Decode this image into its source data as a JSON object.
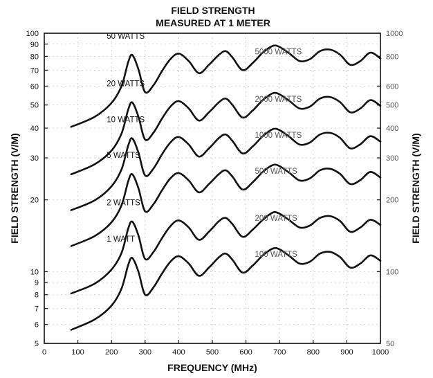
{
  "chart_data": {
    "type": "line",
    "title": [
      "FIELD STRENGTH",
      "MEASURED AT 1 METER"
    ],
    "xlabel": "FREQUENCY (MHz)",
    "ylabel_left": "FIELD STRENGTH (V/M)",
    "ylabel_right": "FIELD STRENGTH (V/M)",
    "xlim": [
      0,
      1000
    ],
    "ylim_left": [
      5,
      100
    ],
    "ylim_right": [
      50,
      1000
    ],
    "y_scale": "log",
    "grid": true,
    "x_ticks": [
      "0",
      "100",
      "200",
      "300",
      "400",
      "500",
      "600",
      "700",
      "800",
      "900",
      "1000"
    ],
    "y_ticks_left": [
      {
        "value": 5,
        "label": "5"
      },
      {
        "value": 6,
        "label": "6"
      },
      {
        "value": 7,
        "label": "7"
      },
      {
        "value": 8,
        "label": "8"
      },
      {
        "value": 9,
        "label": "9"
      },
      {
        "value": 10,
        "label": "10"
      },
      {
        "value": 20,
        "label": "20"
      },
      {
        "value": 30,
        "label": "30"
      },
      {
        "value": 40,
        "label": "40"
      },
      {
        "value": 50,
        "label": "50"
      },
      {
        "value": 60,
        "label": "60"
      },
      {
        "value": 70,
        "label": "70"
      },
      {
        "value": 80,
        "label": "80"
      },
      {
        "value": 90,
        "label": "90"
      },
      {
        "value": 100,
        "label": "100"
      }
    ],
    "y_ticks_right": [
      {
        "value": 50,
        "label": "50"
      },
      {
        "value": 100,
        "label": "100"
      },
      {
        "value": 200,
        "label": "200"
      },
      {
        "value": 300,
        "label": "300"
      },
      {
        "value": 400,
        "label": "400"
      },
      {
        "value": 500,
        "label": "500"
      },
      {
        "value": 600,
        "label": "600"
      },
      {
        "value": 800,
        "label": "800"
      },
      {
        "value": 1000,
        "label": "1000"
      }
    ],
    "series": [
      {
        "name": "1 WATT",
        "right_name": "100 WATTS",
        "label_at": 268,
        "right_label_at": 750,
        "x": [
          80,
          150,
          200,
          230,
          250,
          262,
          280,
          300,
          325,
          350,
          375,
          400,
          430,
          460,
          490,
          520,
          540,
          560,
          590,
          620,
          650,
          680,
          700,
          730,
          760,
          790,
          820,
          850,
          880,
          910,
          940,
          970,
          1000
        ],
        "y": [
          5.7,
          6.3,
          7.2,
          8.5,
          10.7,
          11.4,
          10.0,
          8.0,
          8.6,
          9.8,
          11.0,
          11.6,
          10.8,
          9.6,
          10.4,
          11.5,
          11.9,
          11.2,
          9.9,
          10.6,
          11.7,
          12.5,
          12.4,
          11.6,
          10.8,
          11.0,
          11.9,
          12.1,
          11.5,
          10.4,
          10.8,
          11.7,
          11.1
        ]
      },
      {
        "name": "2 WATTS",
        "right_name": "200 WATTS",
        "label_at": 268,
        "right_label_at": 750,
        "x": [
          80,
          150,
          200,
          230,
          250,
          262,
          280,
          300,
          325,
          350,
          375,
          400,
          430,
          460,
          490,
          520,
          540,
          560,
          590,
          620,
          650,
          680,
          700,
          730,
          760,
          790,
          820,
          850,
          880,
          910,
          940,
          970,
          1000
        ],
        "y": [
          8.1,
          8.9,
          10.2,
          12.0,
          15.2,
          16.2,
          14.2,
          11.3,
          12.1,
          13.8,
          15.5,
          16.4,
          15.3,
          13.6,
          14.7,
          16.3,
          16.8,
          15.8,
          14.0,
          15.0,
          16.5,
          17.7,
          17.5,
          16.4,
          15.3,
          15.6,
          16.8,
          17.1,
          16.3,
          14.7,
          15.3,
          16.5,
          15.7
        ]
      },
      {
        "name": "5 WATTS",
        "right_name": "500 WATTS",
        "label_at": 268,
        "right_label_at": 750,
        "x": [
          80,
          150,
          200,
          230,
          250,
          262,
          280,
          300,
          325,
          350,
          375,
          400,
          430,
          460,
          490,
          520,
          540,
          560,
          590,
          620,
          650,
          680,
          700,
          730,
          760,
          790,
          820,
          850,
          880,
          910,
          940,
          970,
          1000
        ],
        "y": [
          12.8,
          14.1,
          16.1,
          19.0,
          24.0,
          25.6,
          22.4,
          17.9,
          19.2,
          21.9,
          24.6,
          25.9,
          24.1,
          21.5,
          23.3,
          25.7,
          26.6,
          25.0,
          22.1,
          23.7,
          26.2,
          28.0,
          27.7,
          25.9,
          24.1,
          24.6,
          26.6,
          27.0,
          25.7,
          23.3,
          24.2,
          26.2,
          24.8
        ]
      },
      {
        "name": "10 WATTS",
        "right_name": "1000 WATTS",
        "label_at": 268,
        "right_label_at": 750,
        "x": [
          80,
          150,
          200,
          230,
          250,
          262,
          280,
          300,
          325,
          350,
          375,
          400,
          430,
          460,
          490,
          520,
          540,
          560,
          590,
          620,
          650,
          680,
          700,
          730,
          760,
          790,
          820,
          850,
          880,
          910,
          940,
          970,
          1000
        ],
        "y": [
          18.1,
          19.9,
          22.8,
          26.9,
          33.9,
          36.2,
          31.6,
          25.3,
          27.1,
          31.0,
          34.8,
          36.7,
          34.1,
          30.4,
          32.9,
          36.4,
          37.6,
          35.3,
          31.3,
          33.5,
          37.0,
          39.6,
          39.2,
          36.7,
          34.1,
          34.8,
          37.6,
          38.2,
          36.4,
          32.9,
          34.2,
          37.0,
          35.1
        ]
      },
      {
        "name": "20 WATTS",
        "right_name": "2000 WATTS",
        "label_at": 268,
        "right_label_at": 750,
        "x": [
          80,
          150,
          200,
          230,
          250,
          262,
          280,
          300,
          325,
          350,
          375,
          400,
          430,
          460,
          490,
          520,
          540,
          560,
          590,
          620,
          650,
          680,
          700,
          730,
          760,
          790,
          820,
          850,
          880,
          910,
          940,
          970,
          1000
        ],
        "y": [
          25.6,
          28.2,
          32.2,
          38.0,
          48.0,
          51.2,
          44.7,
          35.8,
          38.3,
          43.8,
          49.2,
          51.9,
          48.3,
          43.0,
          46.6,
          51.4,
          53.2,
          50.0,
          44.3,
          47.4,
          52.4,
          56.0,
          55.4,
          51.9,
          48.3,
          49.2,
          53.2,
          54.0,
          51.4,
          46.6,
          48.3,
          52.4,
          49.6
        ]
      },
      {
        "name": "50 WATTS",
        "right_name": "5000 WATTS",
        "label_at": 268,
        "right_label_at": 750,
        "x": [
          80,
          150,
          200,
          230,
          250,
          262,
          280,
          300,
          325,
          350,
          375,
          400,
          430,
          460,
          490,
          520,
          540,
          560,
          590,
          620,
          650,
          680,
          700,
          730,
          760,
          790,
          820,
          850,
          880,
          910,
          940,
          970,
          1000
        ],
        "y": [
          40.5,
          44.6,
          51.0,
          60.1,
          75.9,
          81.0,
          70.7,
          56.6,
          60.6,
          69.3,
          77.8,
          82.1,
          76.4,
          68.0,
          73.7,
          81.3,
          84.1,
          79.1,
          70.0,
          75.0,
          82.9,
          88.5,
          87.6,
          82.1,
          76.4,
          77.8,
          84.1,
          85.4,
          81.3,
          73.7,
          76.4,
          82.9,
          78.4
        ]
      }
    ]
  }
}
